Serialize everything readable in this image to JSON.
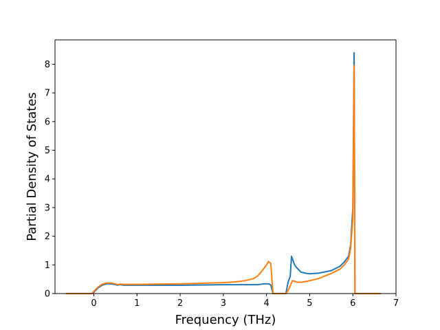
{
  "chart_data": {
    "type": "line",
    "title": "",
    "xlabel": "Frequency (THz)",
    "ylabel": "Partial Density of States",
    "xlim": [
      -0.9,
      7.0
    ],
    "ylim": [
      0,
      8.85
    ],
    "xticks": [
      0,
      1,
      2,
      3,
      4,
      5,
      6,
      7
    ],
    "yticks": [
      0,
      1,
      2,
      3,
      4,
      5,
      6,
      7,
      8
    ],
    "grid": false,
    "legend": "none",
    "series": [
      {
        "color": "#1f77b4",
        "points": [
          [
            -0.65,
            0
          ],
          [
            -0.05,
            0
          ],
          [
            0.0,
            0.05
          ],
          [
            0.1,
            0.2
          ],
          [
            0.2,
            0.3
          ],
          [
            0.3,
            0.34
          ],
          [
            0.4,
            0.34
          ],
          [
            0.5,
            0.31
          ],
          [
            0.55,
            0.29
          ],
          [
            0.6,
            0.31
          ],
          [
            0.7,
            0.29
          ],
          [
            1.0,
            0.29
          ],
          [
            2.0,
            0.29
          ],
          [
            3.0,
            0.31
          ],
          [
            3.5,
            0.31
          ],
          [
            3.8,
            0.31
          ],
          [
            3.95,
            0.34
          ],
          [
            4.05,
            0.34
          ],
          [
            4.1,
            0.3
          ],
          [
            4.15,
            0.0
          ],
          [
            4.45,
            0.0
          ],
          [
            4.5,
            0.4
          ],
          [
            4.55,
            0.6
          ],
          [
            4.58,
            1.3
          ],
          [
            4.65,
            1.0
          ],
          [
            4.7,
            0.9
          ],
          [
            4.8,
            0.75
          ],
          [
            4.9,
            0.71
          ],
          [
            5.0,
            0.69
          ],
          [
            5.2,
            0.71
          ],
          [
            5.5,
            0.8
          ],
          [
            5.7,
            0.95
          ],
          [
            5.8,
            1.1
          ],
          [
            5.9,
            1.3
          ],
          [
            5.95,
            1.7
          ],
          [
            6.0,
            3.0
          ],
          [
            6.03,
            8.4
          ],
          [
            6.05,
            0.0
          ],
          [
            6.65,
            0.0
          ]
        ]
      },
      {
        "color": "#ff7f0e",
        "points": [
          [
            -0.65,
            0
          ],
          [
            -0.05,
            0
          ],
          [
            0.0,
            0.08
          ],
          [
            0.1,
            0.23
          ],
          [
            0.2,
            0.33
          ],
          [
            0.3,
            0.37
          ],
          [
            0.4,
            0.37
          ],
          [
            0.5,
            0.34
          ],
          [
            0.55,
            0.31
          ],
          [
            0.6,
            0.33
          ],
          [
            0.7,
            0.32
          ],
          [
            1.0,
            0.32
          ],
          [
            2.0,
            0.34
          ],
          [
            2.5,
            0.36
          ],
          [
            3.0,
            0.38
          ],
          [
            3.3,
            0.41
          ],
          [
            3.5,
            0.45
          ],
          [
            3.7,
            0.52
          ],
          [
            3.8,
            0.62
          ],
          [
            3.9,
            0.8
          ],
          [
            4.0,
            1.0
          ],
          [
            4.05,
            1.12
          ],
          [
            4.1,
            1.05
          ],
          [
            4.15,
            0.0
          ],
          [
            4.45,
            0.0
          ],
          [
            4.5,
            0.1
          ],
          [
            4.6,
            0.45
          ],
          [
            4.7,
            0.4
          ],
          [
            4.8,
            0.39
          ],
          [
            5.0,
            0.45
          ],
          [
            5.2,
            0.52
          ],
          [
            5.5,
            0.7
          ],
          [
            5.7,
            0.85
          ],
          [
            5.8,
            1.0
          ],
          [
            5.9,
            1.2
          ],
          [
            5.95,
            1.6
          ],
          [
            6.0,
            2.6
          ],
          [
            6.03,
            7.95
          ],
          [
            6.05,
            0.0
          ],
          [
            6.65,
            0.0
          ]
        ]
      }
    ]
  }
}
